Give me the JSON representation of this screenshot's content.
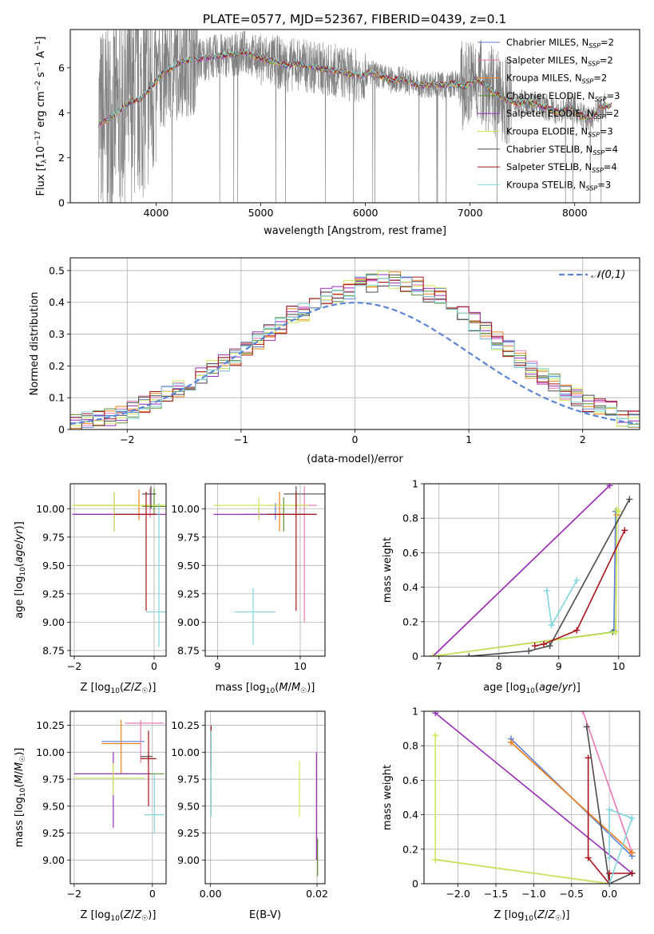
{
  "figure": {
    "title": "PLATE=0577, MJD=52367, FIBERID=0439, z=0.1"
  },
  "colors": [
    "#5b7fd6",
    "#e879b8",
    "#f07f1c",
    "#5a8f2e",
    "#9a2db8",
    "#cde85a",
    "#4d4d4d",
    "#a8141c",
    "#7fd6dc"
  ],
  "legend_labels": [
    "Chabrier MILES, N_SSP=2",
    "Salpeter MILES, N_SSP=2",
    "Kroupa MILES, N_SSP=2",
    "Chabrier ELODIE, N_SSP=3",
    "Salpeter ELODIE, N_SSP=2",
    "Kroupa ELODIE, N_SSP=3",
    "Chabrier STELIB, N_SSP=4",
    "Salpeter STELIB, N_SSP=4",
    "Kroupa STELIB, N_SSP=3"
  ],
  "chart_data": [
    {
      "id": "spectrum",
      "type": "line",
      "xlabel": "wavelength [Angstrom, rest frame]",
      "ylabel": "Flux [f_λ10^-17 erg cm^-2 s^-1 A^-1]",
      "xlim": [
        3180,
        8620
      ],
      "ylim": [
        0,
        7.7
      ],
      "xticks": [
        4000,
        5000,
        6000,
        7000,
        8000
      ],
      "yticks": [
        0,
        2,
        4,
        6
      ],
      "grid": false,
      "legend": "top-right",
      "data_color": "#808080",
      "data_x_range": [
        3450,
        8300
      ],
      "model_x": [
        3450,
        3550,
        3650,
        3750,
        3850,
        3950,
        4050,
        4150,
        4250,
        4350,
        4450,
        4550,
        4650,
        4750,
        4850,
        4950,
        5050,
        5150,
        5250,
        5350,
        5450,
        5550,
        5650,
        5750,
        5850,
        5950,
        6050,
        6150,
        6250,
        6350,
        6450,
        6550,
        6650,
        6750,
        6850,
        6950,
        7050,
        7150,
        7250,
        7350,
        7450,
        7550,
        7650,
        7750,
        7850,
        7950,
        8050,
        8150,
        8250,
        8350
      ],
      "model_y": [
        3.5,
        3.7,
        4.1,
        4.5,
        4.6,
        5.1,
        5.7,
        6.0,
        6.3,
        6.35,
        6.4,
        6.5,
        6.55,
        6.6,
        6.7,
        6.5,
        6.35,
        6.25,
        6.1,
        6.2,
        6.05,
        6.0,
        5.9,
        5.85,
        5.7,
        5.65,
        5.8,
        5.6,
        5.45,
        5.5,
        5.3,
        5.2,
        5.3,
        5.2,
        5.3,
        5.15,
        5.5,
        5.2,
        4.8,
        4.6,
        4.4,
        4.5,
        4.35,
        4.2,
        4.0,
        4.3,
        3.9,
        3.7,
        4.3,
        4.3
      ]
    },
    {
      "id": "residual_hist",
      "type": "line",
      "xlabel": "(data-model)/error",
      "ylabel": "Normed distribution",
      "xlim": [
        -2.5,
        2.5
      ],
      "ylim": [
        0,
        0.54
      ],
      "xticks": [
        -2,
        -1,
        0,
        1,
        2
      ],
      "yticks": [
        0.0,
        0.1,
        0.2,
        0.3,
        0.4,
        0.5
      ],
      "grid": true,
      "legend": "top-right",
      "series": [
        {
          "name": "𝒩(0,1)",
          "style": "dashed",
          "color": "#5b84d6"
        }
      ],
      "bin_width": 0.1,
      "hist_base": [
        0.01,
        0.01,
        0.01,
        0.02,
        0.02,
        0.03,
        0.03,
        0.04,
        0.05,
        0.06,
        0.08,
        0.09,
        0.11,
        0.13,
        0.14,
        0.17,
        0.19,
        0.21,
        0.23,
        0.26,
        0.28,
        0.31,
        0.33,
        0.36,
        0.37,
        0.4,
        0.42,
        0.43,
        0.44,
        0.46,
        0.46,
        0.47,
        0.47,
        0.46,
        0.45,
        0.43,
        0.42,
        0.39,
        0.37,
        0.34,
        0.31,
        0.28,
        0.25,
        0.22,
        0.19,
        0.17,
        0.15,
        0.12,
        0.1,
        0.08,
        0.07,
        0.06,
        0.04,
        0.03,
        0.03,
        0.02,
        0.02,
        0.01
      ]
    },
    {
      "id": "age_vs_Z",
      "type": "scatter",
      "xlabel": "Z [log10(Z/Z☉)]",
      "ylabel": "age [log10(age/yr)]",
      "xlim": [
        -2.1,
        0.3
      ],
      "ylim": [
        8.7,
        10.22
      ],
      "xticks": [
        -2,
        0
      ],
      "yticks": [
        8.75,
        9.0,
        9.25,
        9.5,
        9.75,
        10.0
      ],
      "ytick_labels": [
        "8.75",
        "9.00",
        "9.25",
        "9.50",
        "9.75",
        "10.00"
      ],
      "grid": true,
      "points": [
        {
          "c": 0,
          "x": -1.3,
          "y": 9.95,
          "x0": -2.05,
          "x1": 0.1,
          "y0": 9.95,
          "y1": 9.95
        },
        {
          "c": 1,
          "x": -0.1,
          "y": 9.95,
          "x0": -2.0,
          "x1": 0.0,
          "y0": 9.92,
          "y1": 10.18
        },
        {
          "c": 2,
          "x": -0.38,
          "y": 10.03,
          "x0": -2.0,
          "x1": 0.2,
          "y0": 9.9,
          "y1": 10.17
        },
        {
          "c": 3,
          "x": 0.0,
          "y": 10.02,
          "x0": -0.3,
          "x1": 0.3,
          "y0": 9.95,
          "y1": 10.18
        },
        {
          "c": 4,
          "x": -1.0,
          "y": 9.95,
          "x0": -2.05,
          "x1": 0.3,
          "y0": 9.8,
          "y1": 10.15
        },
        {
          "c": 5,
          "x": -1.0,
          "y": 10.03,
          "x0": -2.05,
          "x1": 0.3,
          "y0": 9.8,
          "y1": 10.15
        },
        {
          "c": 6,
          "x": -0.08,
          "y": 10.13,
          "x0": -0.3,
          "x1": 0.05,
          "y0": 10.0,
          "y1": 10.2
        },
        {
          "c": 7,
          "x": -0.2,
          "y": 9.95,
          "x0": -1.0,
          "x1": 0.05,
          "y0": 9.1,
          "y1": 10.15
        },
        {
          "c": 8,
          "x": 0.12,
          "y": 9.09,
          "x0": -0.2,
          "x1": 0.3,
          "y0": 8.78,
          "y1": 10.05
        }
      ]
    },
    {
      "id": "age_vs_mass",
      "type": "scatter",
      "xlabel": "mass [log10(M/M☉)]",
      "xlim": [
        8.85,
        10.3
      ],
      "ylim": [
        8.7,
        10.22
      ],
      "xticks": [
        9,
        10
      ],
      "yticks": [
        8.75,
        9.0,
        9.25,
        9.5,
        9.75,
        10.0
      ],
      "ytick_labels": [
        "8.75",
        "9.00",
        "9.25",
        "9.50",
        "9.75",
        "10.00"
      ],
      "grid": true,
      "points": [
        {
          "c": 0,
          "x": 9.7,
          "y": 9.95,
          "x0": 9.3,
          "x1": 10.1,
          "y0": 9.9,
          "y1": 10.05
        },
        {
          "c": 1,
          "x": 10.05,
          "y": 10.03,
          "x0": 9.6,
          "x1": 10.2,
          "y0": 9.0,
          "y1": 10.2
        },
        {
          "c": 2,
          "x": 9.75,
          "y": 9.95,
          "x0": 9.5,
          "x1": 10.1,
          "y0": 9.8,
          "y1": 10.15
        },
        {
          "c": 3,
          "x": 9.8,
          "y": 9.95,
          "x0": 9.5,
          "x1": 10.1,
          "y0": 9.8,
          "y1": 10.1
        },
        {
          "c": 4,
          "x": 9.5,
          "y": 9.95,
          "x0": 8.95,
          "x1": 10.2,
          "y0": 9.9,
          "y1": 10.0
        },
        {
          "c": 5,
          "x": 9.5,
          "y": 10.03,
          "x0": 8.95,
          "x1": 10.1,
          "y0": 9.9,
          "y1": 10.1
        },
        {
          "c": 6,
          "x": 9.95,
          "y": 10.13,
          "x0": 9.8,
          "x1": 10.3,
          "y0": 10.0,
          "y1": 10.2
        },
        {
          "c": 7,
          "x": 9.95,
          "y": 9.95,
          "x0": 9.6,
          "x1": 10.2,
          "y0": 9.1,
          "y1": 10.15
        },
        {
          "c": 8,
          "x": 9.43,
          "y": 9.09,
          "x0": 9.2,
          "x1": 9.7,
          "y0": 8.8,
          "y1": 9.3
        }
      ]
    },
    {
      "id": "massweight_vs_age",
      "type": "line",
      "xlabel": "age [log10(age/yr)]",
      "ylabel": "mass weight",
      "xlim": [
        6.75,
        10.35
      ],
      "ylim": [
        0,
        1.0
      ],
      "xticks": [
        7,
        8,
        9,
        10
      ],
      "yticks": [
        0.0,
        0.2,
        0.4,
        0.6,
        0.8,
        1.0
      ],
      "grid": true,
      "series": [
        {
          "c": 0,
          "x": [
            9.92,
            9.95
          ],
          "y": [
            0.15,
            0.84
          ]
        },
        {
          "c": 1,
          "x": [
            6.9,
            9.85
          ],
          "y": [
            0.0,
            0.99
          ]
        },
        {
          "c": 2,
          "x": [
            9.95,
            9.97
          ],
          "y": [
            0.14,
            0.82
          ]
        },
        {
          "c": 3,
          "x": [
            6.9,
            9.9
          ],
          "y": [
            0.0,
            0.14
          ]
        },
        {
          "c": 4,
          "x": [
            6.9,
            9.85
          ],
          "y": [
            0.0,
            0.99
          ]
        },
        {
          "c": 5,
          "x": [
            6.9,
            9.95,
            9.97,
            10.0
          ],
          "y": [
            0.0,
            0.14,
            0.85,
            0.84
          ]
        },
        {
          "c": 6,
          "x": [
            7.5,
            8.5,
            8.85,
            10.18
          ],
          "y": [
            0.0,
            0.03,
            0.06,
            0.91
          ]
        },
        {
          "c": 7,
          "x": [
            8.6,
            8.75,
            9.3,
            10.1
          ],
          "y": [
            0.06,
            0.07,
            0.15,
            0.73
          ]
        },
        {
          "c": 8,
          "x": [
            8.8,
            8.88,
            9.3
          ],
          "y": [
            0.38,
            0.18,
            0.44
          ]
        }
      ]
    },
    {
      "id": "mass_vs_Z",
      "type": "scatter",
      "xlabel": "Z [log10(Z/Z☉)]",
      "ylabel": "mass [log10(M/M☉)]",
      "xlim": [
        -2.1,
        0.35
      ],
      "ylim": [
        8.78,
        10.38
      ],
      "xticks": [
        -2,
        0
      ],
      "yticks": [
        9.0,
        9.25,
        9.5,
        9.75,
        10.0,
        10.25
      ],
      "ytick_labels": [
        "9.00",
        "9.25",
        "9.50",
        "9.75",
        "10.00",
        "10.25"
      ],
      "grid": true,
      "points": [
        {
          "c": 0,
          "x": -0.7,
          "y": 10.1,
          "x0": -1.3,
          "x1": -0.2,
          "y0": 10.1,
          "y1": 10.1
        },
        {
          "c": 1,
          "x": -0.3,
          "y": 10.27,
          "x0": -0.7,
          "x1": 0.3,
          "y0": 9.9,
          "y1": 10.3
        },
        {
          "c": 2,
          "x": -0.8,
          "y": 10.08,
          "x0": -1.3,
          "x1": -0.3,
          "y0": 9.8,
          "y1": 10.3
        },
        {
          "c": 3,
          "x": -0.9,
          "y": 9.8,
          "x0": -2.0,
          "x1": 0.3,
          "y0": 9.8,
          "y1": 9.8
        },
        {
          "c": 4,
          "x": -1.0,
          "y": 9.8,
          "x0": -2.0,
          "x1": -0.05,
          "y0": 9.3,
          "y1": 10.0
        },
        {
          "c": 5,
          "x": -1.0,
          "y": 9.76,
          "x0": -2.0,
          "x1": -0.2,
          "y0": 9.6,
          "y1": 9.9
        },
        {
          "c": 6,
          "x": -0.1,
          "y": 9.96,
          "x0": -0.3,
          "x1": 0.0,
          "y0": 9.9,
          "y1": 10.0
        },
        {
          "c": 7,
          "x": -0.1,
          "y": 9.94,
          "x0": -0.3,
          "x1": 0.1,
          "y0": 9.5,
          "y1": 10.2
        },
        {
          "c": 8,
          "x": 0.05,
          "y": 9.42,
          "x0": -0.2,
          "x1": 0.3,
          "y0": 9.25,
          "y1": 9.8
        }
      ]
    },
    {
      "id": "mass_vs_ebv",
      "type": "scatter",
      "xlabel": "E(B-V)",
      "xlim": [
        -0.001,
        0.0215
      ],
      "ylim": [
        8.78,
        10.38
      ],
      "xticks": [
        0.0,
        0.02
      ],
      "xtick_labels": [
        "0.00",
        "0.02"
      ],
      "yticks": [
        9.0,
        9.25,
        9.5,
        9.75,
        10.0,
        10.25
      ],
      "ytick_labels": [
        "9.00",
        "9.25",
        "9.50",
        "9.75",
        "10.00",
        "10.25"
      ],
      "grid": true,
      "vlines": [
        {
          "c": 7,
          "x": 0.0001,
          "y0": 9.85,
          "y1": 10.25
        },
        {
          "c": 8,
          "x": 0.0001,
          "y0": 9.4,
          "y1": 10.2
        },
        {
          "c": 5,
          "x": 0.0167,
          "y0": 9.4,
          "y1": 9.92
        },
        {
          "c": 4,
          "x": 0.0199,
          "y0": 9.0,
          "y1": 10.0
        },
        {
          "c": 3,
          "x": 0.0201,
          "y0": 8.85,
          "y1": 9.2
        }
      ]
    },
    {
      "id": "massweight_vs_Z",
      "type": "line",
      "xlabel": "Z [log10(Z/Z☉)]",
      "ylabel": "mass weight",
      "xlim": [
        -2.45,
        0.4
      ],
      "ylim": [
        0,
        1.0
      ],
      "xticks": [
        -2.0,
        -1.5,
        -1.0,
        -0.5,
        0.0
      ],
      "xtick_labels": [
        "−2.0",
        "−1.5",
        "−1.0",
        "−0.5",
        "0.0"
      ],
      "yticks": [
        0.0,
        0.2,
        0.4,
        0.6,
        0.8,
        1.0
      ],
      "grid": true,
      "series": [
        {
          "c": 0,
          "x": [
            -1.3,
            0.3
          ],
          "y": [
            0.84,
            0.16
          ]
        },
        {
          "c": 1,
          "x": [
            -0.35,
            0.3
          ],
          "y": [
            1.0,
            0.18
          ]
        },
        {
          "c": 2,
          "x": [
            -1.3,
            0.3
          ],
          "y": [
            0.82,
            0.18
          ]
        },
        {
          "c": 3,
          "x": [
            -2.3,
            0.0
          ],
          "y": [
            0.14,
            0.0
          ]
        },
        {
          "c": 4,
          "x": [
            -2.3,
            0.3
          ],
          "y": [
            0.99,
            0.06
          ]
        },
        {
          "c": 5,
          "x": [
            -2.3,
            -2.3,
            0.0
          ],
          "y": [
            0.86,
            0.14,
            0.0
          ]
        },
        {
          "c": 6,
          "x": [
            -0.3,
            0.0,
            0.3
          ],
          "y": [
            0.91,
            0.0,
            0.06
          ]
        },
        {
          "c": 7,
          "x": [
            -0.28,
            -0.28,
            0.0,
            0.0,
            0.3
          ],
          "y": [
            0.73,
            0.15,
            0.0,
            0.06,
            0.06
          ]
        },
        {
          "c": 8,
          "x": [
            0.0,
            0.0,
            0.3,
            0.0
          ],
          "y": [
            0.15,
            0.43,
            0.38,
            0.0
          ]
        }
      ]
    }
  ]
}
